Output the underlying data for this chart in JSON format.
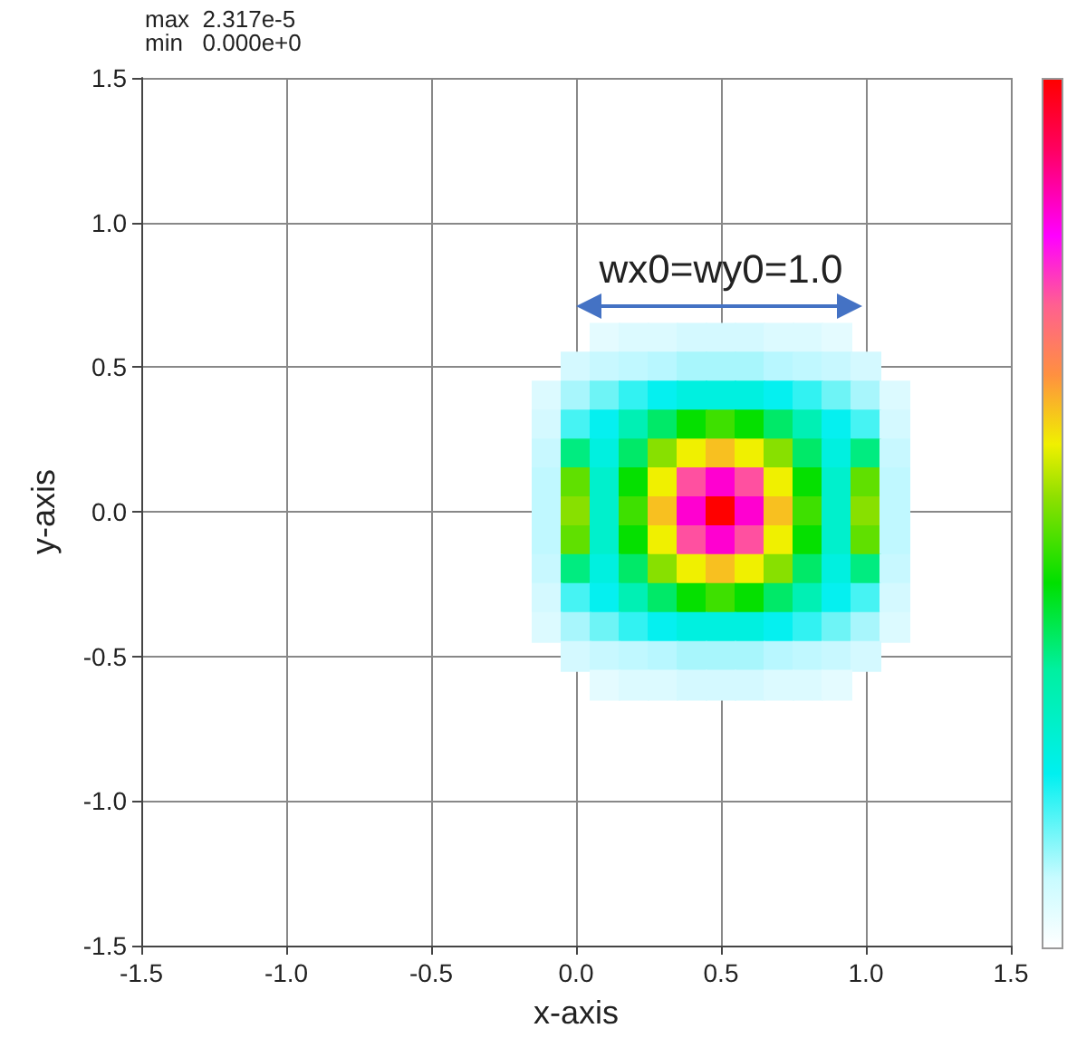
{
  "chart_data": {
    "type": "scatter",
    "xlabel": "x-axis",
    "ylabel": "y-axis",
    "annotations": [
      "max  2.317e-5",
      "min   0.000e+0",
      "wx0=wy0=1.0"
    ],
    "xlim": [
      -1.5,
      1.5
    ],
    "ylim": [
      -1.5,
      1.5
    ],
    "xticks": [
      -1.5,
      {
        "value": -1,
        "label": "-1.0"
      },
      -0.5,
      {
        "value": 0,
        "label": "0.0"
      },
      0.5,
      {
        "value": 1,
        "label": "1.0"
      },
      1.5
    ],
    "yticks": [
      -1.5,
      {
        "value": -1,
        "label": "-1.0"
      },
      -0.5,
      {
        "value": 0,
        "label": "0.0"
      },
      0.5,
      {
        "value": 1,
        "label": "1.0"
      },
      1.5
    ],
    "grid": true,
    "marker": "square",
    "x": [
      -0.1,
      0,
      0.1,
      0.2,
      0.3,
      0.4,
      0.5,
      0.6,
      0.7,
      0.8,
      0.9,
      1,
      1.1
    ],
    "series": [
      {
        "values": [
          null,
          null,
          0.6,
          0.6,
          0.6,
          0.6,
          0.6,
          0.6,
          0.6,
          0.6,
          0.6,
          null,
          null
        ],
        "colors": [
          null,
          null,
          "#e4fbff",
          "#dcfaff",
          "#dcfaff",
          "#d4f9ff",
          "#d4f9ff",
          "#d4f9ff",
          "#dcfaff",
          "#dcfaff",
          "#e4fbff",
          null,
          null
        ]
      },
      {
        "values": [
          null,
          0.5,
          0.5,
          0.5,
          0.5,
          0.5,
          0.5,
          0.5,
          0.5,
          0.5,
          0.5,
          0.5,
          null
        ],
        "colors": [
          null,
          "#d4f9ff",
          "#c8f8ff",
          "#c0f8ff",
          "#b8f7ff",
          "#a8f6fc",
          "#a8f6fc",
          "#a8f6fc",
          "#b8f7ff",
          "#c0f8ff",
          "#c8f8ff",
          "#d4f9ff",
          null
        ]
      },
      {
        "values": [
          0.4,
          0.4,
          0.4,
          0.4,
          0.4,
          0.4,
          0.4,
          0.4,
          0.4,
          0.4,
          0.4,
          0.4,
          0.4
        ],
        "colors": [
          "#dcfaff",
          "#a8f6fc",
          "#6ef4f6",
          "#32f2f2",
          "#05f0f0",
          "#00f0e0",
          "#00f0e0",
          "#00f0e0",
          "#05f0f0",
          "#32f2f2",
          "#6ef4f6",
          "#a8f6fc",
          "#dcfaff"
        ]
      },
      {
        "values": [
          0.3,
          0.3,
          0.3,
          0.3,
          0.3,
          0.3,
          0.3,
          0.3,
          0.3,
          0.3,
          0.3,
          0.3,
          0.3
        ],
        "colors": [
          "#d4f9ff",
          "#46f3f3",
          "#05f0f0",
          "#00f0b4",
          "#00e968",
          "#05e000",
          "#3ee000",
          "#05e000",
          "#00e968",
          "#00f0b4",
          "#05f0f0",
          "#46f3f3",
          "#d4f9ff"
        ]
      },
      {
        "values": [
          0.2,
          0.2,
          0.2,
          0.2,
          0.2,
          0.2,
          0.2,
          0.2,
          0.2,
          0.2,
          0.2,
          0.2,
          0.2
        ],
        "colors": [
          "#c8f8ff",
          "#00ec80",
          "#00f0e0",
          "#00e968",
          "#88e000",
          "#f0f000",
          "#f8c020",
          "#f0f000",
          "#88e000",
          "#00e968",
          "#00f0e0",
          "#00ec80",
          "#c8f8ff"
        ]
      },
      {
        "values": [
          0.1,
          0.1,
          0.1,
          0.1,
          0.1,
          0.1,
          0.1,
          0.1,
          0.1,
          0.1,
          0.1,
          0.1,
          0.1
        ],
        "colors": [
          "#c0f8ff",
          "#60e000",
          "#00f0cc",
          "#05e000",
          "#f0f000",
          "#ff50a0",
          "#ff00d0",
          "#ff50a0",
          "#f0f000",
          "#05e000",
          "#00f0cc",
          "#60e000",
          "#c0f8ff"
        ]
      },
      {
        "values": [
          0,
          0,
          0,
          0,
          0,
          0,
          0,
          0,
          0,
          0,
          0,
          0,
          0
        ],
        "colors": [
          "#c0f8ff",
          "#88e000",
          "#00f0cc",
          "#3ee000",
          "#f8c020",
          "#ff00d0",
          "#ff0000",
          "#ff00d0",
          "#f8c020",
          "#3ee000",
          "#00f0cc",
          "#88e000",
          "#c0f8ff"
        ]
      },
      {
        "values": [
          -0.1,
          -0.1,
          -0.1,
          -0.1,
          -0.1,
          -0.1,
          -0.1,
          -0.1,
          -0.1,
          -0.1,
          -0.1,
          -0.1,
          -0.1
        ],
        "colors": [
          "#c0f8ff",
          "#60e000",
          "#00f0cc",
          "#05e000",
          "#f0f000",
          "#ff50a0",
          "#ff00d0",
          "#ff50a0",
          "#f0f000",
          "#05e000",
          "#00f0cc",
          "#60e000",
          "#c0f8ff"
        ]
      },
      {
        "values": [
          -0.2,
          -0.2,
          -0.2,
          -0.2,
          -0.2,
          -0.2,
          -0.2,
          -0.2,
          -0.2,
          -0.2,
          -0.2,
          -0.2,
          -0.2
        ],
        "colors": [
          "#c8f8ff",
          "#00ec80",
          "#00f0e0",
          "#00e968",
          "#88e000",
          "#f0f000",
          "#f8c020",
          "#f0f000",
          "#88e000",
          "#00e968",
          "#00f0e0",
          "#00ec80",
          "#c8f8ff"
        ]
      },
      {
        "values": [
          -0.3,
          -0.3,
          -0.3,
          -0.3,
          -0.3,
          -0.3,
          -0.3,
          -0.3,
          -0.3,
          -0.3,
          -0.3,
          -0.3,
          -0.3
        ],
        "colors": [
          "#d4f9ff",
          "#46f3f3",
          "#05f0f0",
          "#00f0b4",
          "#00e968",
          "#05e000",
          "#3ee000",
          "#05e000",
          "#00e968",
          "#00f0b4",
          "#05f0f0",
          "#46f3f3",
          "#d4f9ff"
        ]
      },
      {
        "values": [
          -0.4,
          -0.4,
          -0.4,
          -0.4,
          -0.4,
          -0.4,
          -0.4,
          -0.4,
          -0.4,
          -0.4,
          -0.4,
          -0.4,
          -0.4
        ],
        "colors": [
          "#dcfaff",
          "#a8f6fc",
          "#6ef4f6",
          "#32f2f2",
          "#05f0f0",
          "#00f0e0",
          "#00f0e0",
          "#00f0e0",
          "#05f0f0",
          "#32f2f2",
          "#6ef4f6",
          "#a8f6fc",
          "#dcfaff"
        ]
      },
      {
        "values": [
          null,
          -0.5,
          -0.5,
          -0.5,
          -0.5,
          -0.5,
          -0.5,
          -0.5,
          -0.5,
          -0.5,
          -0.5,
          -0.5,
          null
        ],
        "colors": [
          null,
          "#d4f9ff",
          "#c8f8ff",
          "#c0f8ff",
          "#b8f7ff",
          "#a8f6fc",
          "#a8f6fc",
          "#a8f6fc",
          "#b8f7ff",
          "#c0f8ff",
          "#c8f8ff",
          "#d4f9ff",
          null
        ]
      },
      {
        "values": [
          null,
          null,
          -0.6,
          -0.6,
          -0.6,
          -0.6,
          -0.6,
          -0.6,
          -0.6,
          -0.6,
          -0.6,
          null,
          null
        ],
        "colors": [
          null,
          null,
          "#e4fbff",
          "#dcfaff",
          "#dcfaff",
          "#d4f9ff",
          "#d4f9ff",
          "#d4f9ff",
          "#dcfaff",
          "#dcfaff",
          "#e4fbff",
          null,
          null
        ]
      }
    ]
  }
}
